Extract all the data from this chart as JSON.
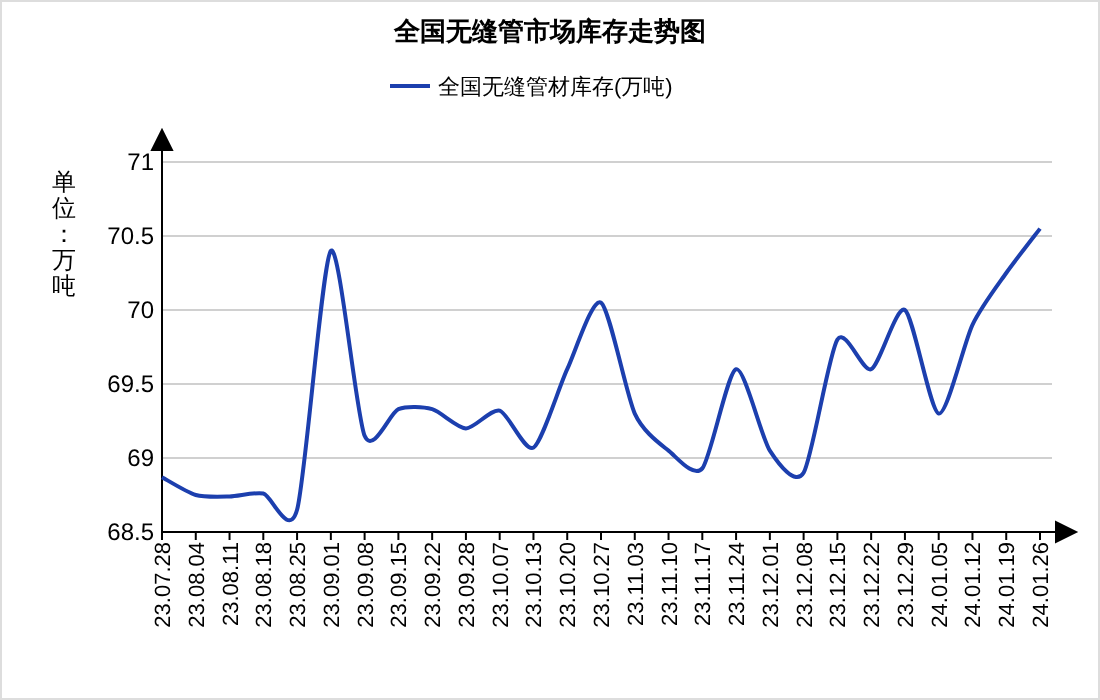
{
  "chart_data": {
    "type": "line",
    "title": "全国无缝管市场库存走势图",
    "ylabel": "单位：万吨",
    "categories": [
      "23.07.28",
      "23.08.04",
      "23.08.11",
      "23.08.18",
      "23.08.25",
      "23.09.01",
      "23.09.08",
      "23.09.15",
      "23.09.22",
      "23.09.28",
      "23.10.07",
      "23.10.13",
      "23.10.20",
      "23.10.27",
      "23.11.03",
      "23.11.10",
      "23.11.17",
      "23.11.24",
      "23.12.01",
      "23.12.08",
      "23.12.15",
      "23.12.22",
      "23.12.29",
      "24.01.05",
      "24.01.12",
      "24.01.19",
      "24.01.26"
    ],
    "series": [
      {
        "name": "全国无缝管材库存(万吨)",
        "color": "#1c3fae",
        "values": [
          68.87,
          68.75,
          68.74,
          68.76,
          68.65,
          70.4,
          69.15,
          69.33,
          69.33,
          69.2,
          69.32,
          69.07,
          69.6,
          70.05,
          69.3,
          69.05,
          68.93,
          69.6,
          69.05,
          68.9,
          69.8,
          69.6,
          70.0,
          69.3,
          69.9,
          70.25,
          70.55
        ]
      }
    ],
    "ylim": [
      68.5,
      71
    ],
    "yticks": [
      68.5,
      69,
      69.5,
      70,
      70.5,
      71
    ],
    "grid": "y",
    "legend": "top",
    "marker": "none",
    "line_style": "solid"
  }
}
